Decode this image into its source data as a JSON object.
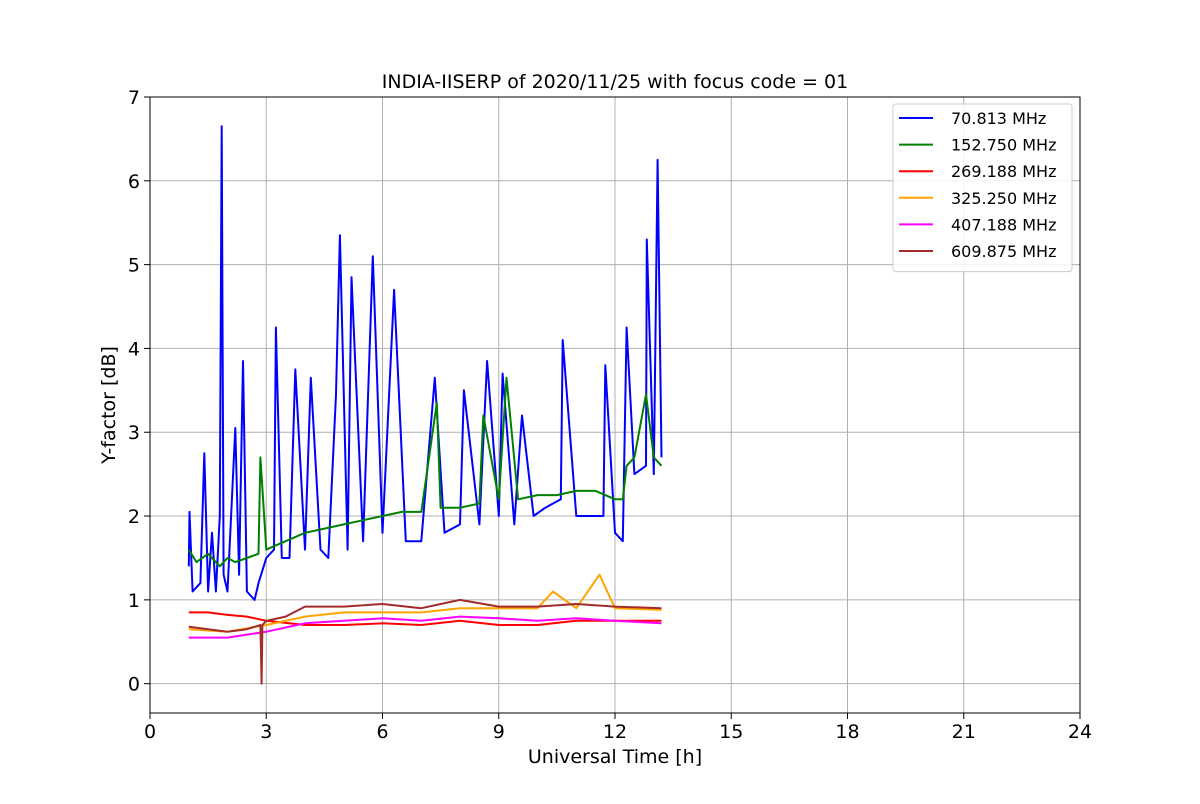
{
  "chart_data": {
    "type": "line",
    "title": "INDIA-IISERP of 2020/11/25 with focus code = 01",
    "xlabel": "Universal Time [h]",
    "ylabel": "Y-factor [dB]",
    "xlim": [
      0,
      24
    ],
    "ylim": [
      -0.35,
      7
    ],
    "xticks": [
      0,
      3,
      6,
      9,
      12,
      15,
      18,
      21,
      24
    ],
    "yticks": [
      0,
      1,
      2,
      3,
      4,
      5,
      6,
      7
    ],
    "xtick_labels": [
      "0",
      "3",
      "6",
      "9",
      "12",
      "15",
      "18",
      "21",
      "24"
    ],
    "ytick_labels": [
      "0",
      "1",
      "2",
      "3",
      "4",
      "5",
      "6",
      "7"
    ],
    "grid": true,
    "legend_position": "top-right",
    "series": [
      {
        "name": "70.813 MHz",
        "color": "#0000ff",
        "x": [
          1.0,
          1.02,
          1.1,
          1.3,
          1.4,
          1.5,
          1.6,
          1.7,
          1.8,
          1.85,
          1.9,
          2.0,
          2.2,
          2.3,
          2.4,
          2.5,
          2.7,
          2.8,
          3.0,
          3.2,
          3.25,
          3.4,
          3.6,
          3.75,
          4.0,
          4.15,
          4.4,
          4.6,
          4.8,
          4.9,
          5.1,
          5.2,
          5.5,
          5.75,
          6.0,
          6.3,
          6.6,
          7.0,
          7.35,
          7.6,
          8.0,
          8.1,
          8.5,
          8.7,
          9.0,
          9.1,
          9.4,
          9.6,
          9.9,
          10.2,
          10.6,
          10.65,
          11.0,
          11.3,
          11.7,
          11.75,
          12.0,
          12.2,
          12.3,
          12.5,
          12.8,
          12.82,
          13.0,
          13.1,
          13.2
        ],
        "values": [
          1.4,
          2.05,
          1.1,
          1.2,
          2.75,
          1.1,
          1.8,
          1.1,
          2.0,
          6.65,
          1.3,
          1.1,
          3.05,
          1.3,
          3.85,
          1.1,
          1.0,
          1.2,
          1.5,
          1.6,
          4.25,
          1.5,
          1.5,
          3.75,
          1.6,
          3.65,
          1.6,
          1.5,
          3.45,
          5.35,
          1.6,
          4.85,
          1.7,
          5.1,
          1.8,
          4.7,
          1.7,
          1.7,
          3.65,
          1.8,
          1.9,
          3.5,
          1.9,
          3.85,
          2.0,
          3.7,
          1.9,
          3.2,
          2.0,
          2.1,
          2.2,
          4.1,
          2.0,
          2.0,
          2.0,
          3.8,
          1.8,
          1.7,
          4.25,
          2.5,
          2.6,
          5.3,
          2.5,
          6.25,
          2.7
        ]
      },
      {
        "name": "152.750 MHz",
        "color": "#008000",
        "x": [
          1.0,
          1.2,
          1.5,
          1.8,
          2.0,
          2.2,
          2.5,
          2.8,
          2.85,
          3.0,
          3.5,
          4.0,
          4.5,
          5.0,
          5.5,
          6.0,
          6.5,
          7.0,
          7.4,
          7.5,
          8.0,
          8.5,
          8.6,
          9.0,
          9.2,
          9.5,
          10.0,
          10.5,
          11.0,
          11.5,
          12.0,
          12.2,
          12.3,
          12.5,
          12.8,
          13.0,
          13.2
        ],
        "values": [
          1.6,
          1.45,
          1.55,
          1.4,
          1.5,
          1.45,
          1.5,
          1.55,
          2.7,
          1.6,
          1.7,
          1.8,
          1.85,
          1.9,
          1.95,
          2.0,
          2.05,
          2.05,
          3.35,
          2.1,
          2.1,
          2.15,
          3.2,
          2.2,
          3.65,
          2.2,
          2.25,
          2.25,
          2.3,
          2.3,
          2.2,
          2.2,
          2.6,
          2.7,
          3.45,
          2.7,
          2.6
        ]
      },
      {
        "name": "269.188 MHz",
        "color": "#ff0000",
        "x": [
          1.0,
          1.5,
          2.0,
          2.5,
          3.0,
          4.0,
          5.0,
          6.0,
          7.0,
          8.0,
          9.0,
          10.0,
          11.0,
          12.0,
          13.2
        ],
        "values": [
          0.85,
          0.85,
          0.82,
          0.8,
          0.75,
          0.7,
          0.7,
          0.72,
          0.7,
          0.75,
          0.7,
          0.7,
          0.75,
          0.75,
          0.75
        ]
      },
      {
        "name": "325.250 MHz",
        "color": "#ffa500",
        "x": [
          1.0,
          2.0,
          3.0,
          4.0,
          5.0,
          6.0,
          7.0,
          8.0,
          9.0,
          10.0,
          10.4,
          11.0,
          11.6,
          12.0,
          13.2
        ],
        "values": [
          0.65,
          0.62,
          0.7,
          0.8,
          0.85,
          0.85,
          0.85,
          0.9,
          0.9,
          0.9,
          1.1,
          0.9,
          1.3,
          0.9,
          0.88
        ]
      },
      {
        "name": "407.188 MHz",
        "color": "#ff00ff",
        "x": [
          1.0,
          2.0,
          3.0,
          4.0,
          5.0,
          6.0,
          7.0,
          8.0,
          9.0,
          10.0,
          11.0,
          12.0,
          13.2
        ],
        "values": [
          0.55,
          0.55,
          0.62,
          0.72,
          0.75,
          0.78,
          0.75,
          0.8,
          0.78,
          0.75,
          0.78,
          0.75,
          0.72
        ]
      },
      {
        "name": "609.875 MHz",
        "color": "#a52a2a",
        "x": [
          1.0,
          1.5,
          2.0,
          2.5,
          2.85,
          2.88,
          2.9,
          3.0,
          3.5,
          4.0,
          5.0,
          6.0,
          7.0,
          8.0,
          9.0,
          10.0,
          11.0,
          12.0,
          13.2
        ],
        "values": [
          0.68,
          0.65,
          0.62,
          0.65,
          0.7,
          0.0,
          0.7,
          0.75,
          0.8,
          0.92,
          0.92,
          0.95,
          0.9,
          1.0,
          0.92,
          0.92,
          0.95,
          0.92,
          0.9
        ]
      }
    ]
  }
}
